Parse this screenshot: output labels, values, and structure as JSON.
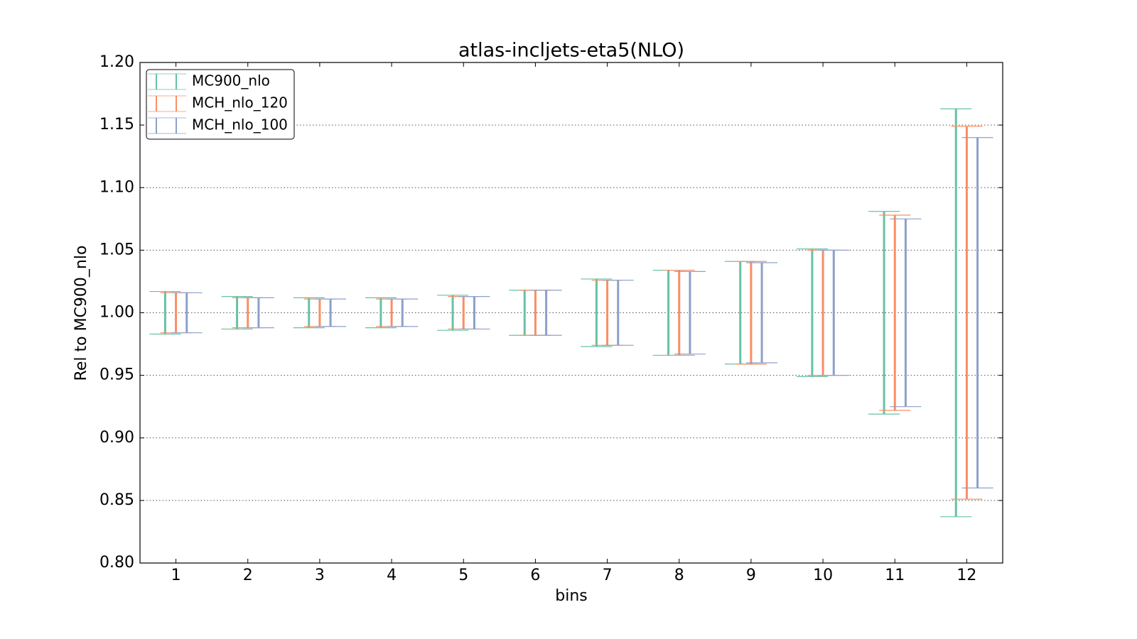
{
  "chart_data": {
    "type": "errorbar",
    "title": "atlas-incljets-eta5(NLO)",
    "x_label": "bins",
    "y_label": "Rel to MC900_nlo",
    "x": [
      1,
      2,
      3,
      4,
      5,
      6,
      7,
      8,
      9,
      10,
      11,
      12
    ],
    "series": [
      {
        "name": "MC900_nlo",
        "color": "#66c2a5",
        "values": [
          1,
          1,
          1,
          1,
          1,
          1,
          1,
          1,
          1,
          1,
          1,
          1
        ],
        "errors": [
          0.017,
          0.013,
          0.012,
          0.012,
          0.014,
          0.018,
          0.027,
          0.034,
          0.041,
          0.051,
          0.081,
          0.163
        ]
      },
      {
        "name": "MCH_nlo_120",
        "color": "#fc8d62",
        "values": [
          1,
          1,
          1,
          1,
          1,
          1,
          1,
          1,
          1,
          1,
          1,
          1
        ],
        "errors": [
          0.016,
          0.012,
          0.011,
          0.011,
          0.013,
          0.018,
          0.026,
          0.034,
          0.041,
          0.05,
          0.078,
          0.149
        ]
      },
      {
        "name": "MCH_nlo_100",
        "color": "#8da0cb",
        "values": [
          1,
          1,
          1,
          1,
          1,
          1,
          1,
          1,
          1,
          1,
          1,
          1
        ],
        "errors": [
          0.016,
          0.012,
          0.011,
          0.011,
          0.013,
          0.018,
          0.026,
          0.033,
          0.04,
          0.05,
          0.075,
          0.14
        ]
      }
    ],
    "xlim": [
      0.5,
      12.5
    ],
    "xticks": [
      1,
      2,
      3,
      4,
      5,
      6,
      7,
      8,
      9,
      10,
      11,
      12
    ],
    "ylim": [
      0.8,
      1.2
    ],
    "yticks": [
      {
        "value": 0.8,
        "label": "0.80"
      },
      0.85,
      {
        "value": 0.9,
        "label": "0.90"
      },
      0.95,
      {
        "value": 1.0,
        "label": "1.00"
      },
      1.05,
      {
        "value": 1.1,
        "label": "1.10"
      },
      1.15,
      {
        "value": 1.2,
        "label": "1.20"
      }
    ],
    "grid": true,
    "legend_position": "upper-left"
  }
}
